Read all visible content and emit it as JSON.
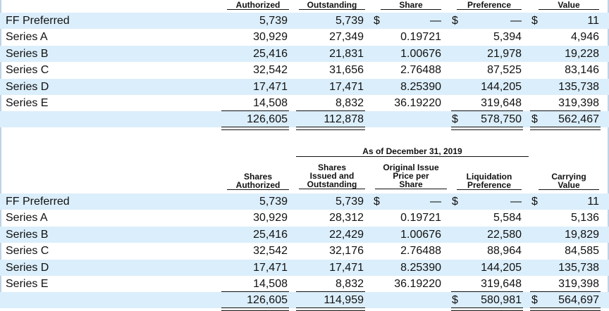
{
  "top_table": {
    "headers": {
      "authorized": "Authorized",
      "outstanding": "Outstanding",
      "price": "Share",
      "liquidation": "Preference",
      "carrying": "Value"
    },
    "rows": [
      {
        "name": "FF Preferred",
        "authorized": "5,739",
        "outstanding": "5,739",
        "price": "—",
        "liquidation": "—",
        "carrying": "11",
        "dollars": true
      },
      {
        "name": "Series A",
        "authorized": "30,929",
        "outstanding": "27,349",
        "price": "0.19721",
        "liquidation": "5,394",
        "carrying": "4,946"
      },
      {
        "name": "Series B",
        "authorized": "25,416",
        "outstanding": "21,831",
        "price": "1.00676",
        "liquidation": "21,978",
        "carrying": "19,228"
      },
      {
        "name": "Series C",
        "authorized": "32,542",
        "outstanding": "31,656",
        "price": "2.76488",
        "liquidation": "87,525",
        "carrying": "83,146"
      },
      {
        "name": "Series D",
        "authorized": "17,471",
        "outstanding": "17,471",
        "price": "8.25390",
        "liquidation": "144,205",
        "carrying": "135,738"
      },
      {
        "name": "Series E",
        "authorized": "14,508",
        "outstanding": "8,832",
        "price": "36.19220",
        "liquidation": "319,648",
        "carrying": "319,398"
      }
    ],
    "total": {
      "authorized": "126,605",
      "outstanding": "112,878",
      "liquidation": "578,750",
      "carrying": "562,467"
    }
  },
  "bottom_table": {
    "as_of": "As of December 31, 2019",
    "headers": {
      "authorized_l1": "Shares",
      "authorized_l2": "Authorized",
      "outstanding_l1": "Shares",
      "outstanding_l2": "Issued and",
      "outstanding_l3": "Outstanding",
      "price_l1": "Original Issue",
      "price_l2": "Price per",
      "price_l3": "Share",
      "liquidation_l1": "Liquidation",
      "liquidation_l2": "Preference",
      "carrying_l1": "Carrying",
      "carrying_l2": "Value"
    },
    "rows": [
      {
        "name": "FF Preferred",
        "authorized": "5,739",
        "outstanding": "5,739",
        "price": "—",
        "liquidation": "—",
        "carrying": "11",
        "dollars": true
      },
      {
        "name": "Series A",
        "authorized": "30,929",
        "outstanding": "28,312",
        "price": "0.19721",
        "liquidation": "5,584",
        "carrying": "5,136"
      },
      {
        "name": "Series B",
        "authorized": "25,416",
        "outstanding": "22,429",
        "price": "1.00676",
        "liquidation": "22,580",
        "carrying": "19,829"
      },
      {
        "name": "Series C",
        "authorized": "32,542",
        "outstanding": "32,176",
        "price": "2.76488",
        "liquidation": "88,964",
        "carrying": "84,585"
      },
      {
        "name": "Series D",
        "authorized": "17,471",
        "outstanding": "17,471",
        "price": "8.25390",
        "liquidation": "144,205",
        "carrying": "135,738"
      },
      {
        "name": "Series E",
        "authorized": "14,508",
        "outstanding": "8,832",
        "price": "36.19220",
        "liquidation": "319,648",
        "carrying": "319,398"
      }
    ],
    "total": {
      "authorized": "126,605",
      "outstanding": "114,959",
      "liquidation": "580,981",
      "carrying": "564,697"
    }
  },
  "currency_symbol": "$",
  "colors": {
    "shade": "#dbeefb",
    "frame": "#bcd3e8"
  }
}
